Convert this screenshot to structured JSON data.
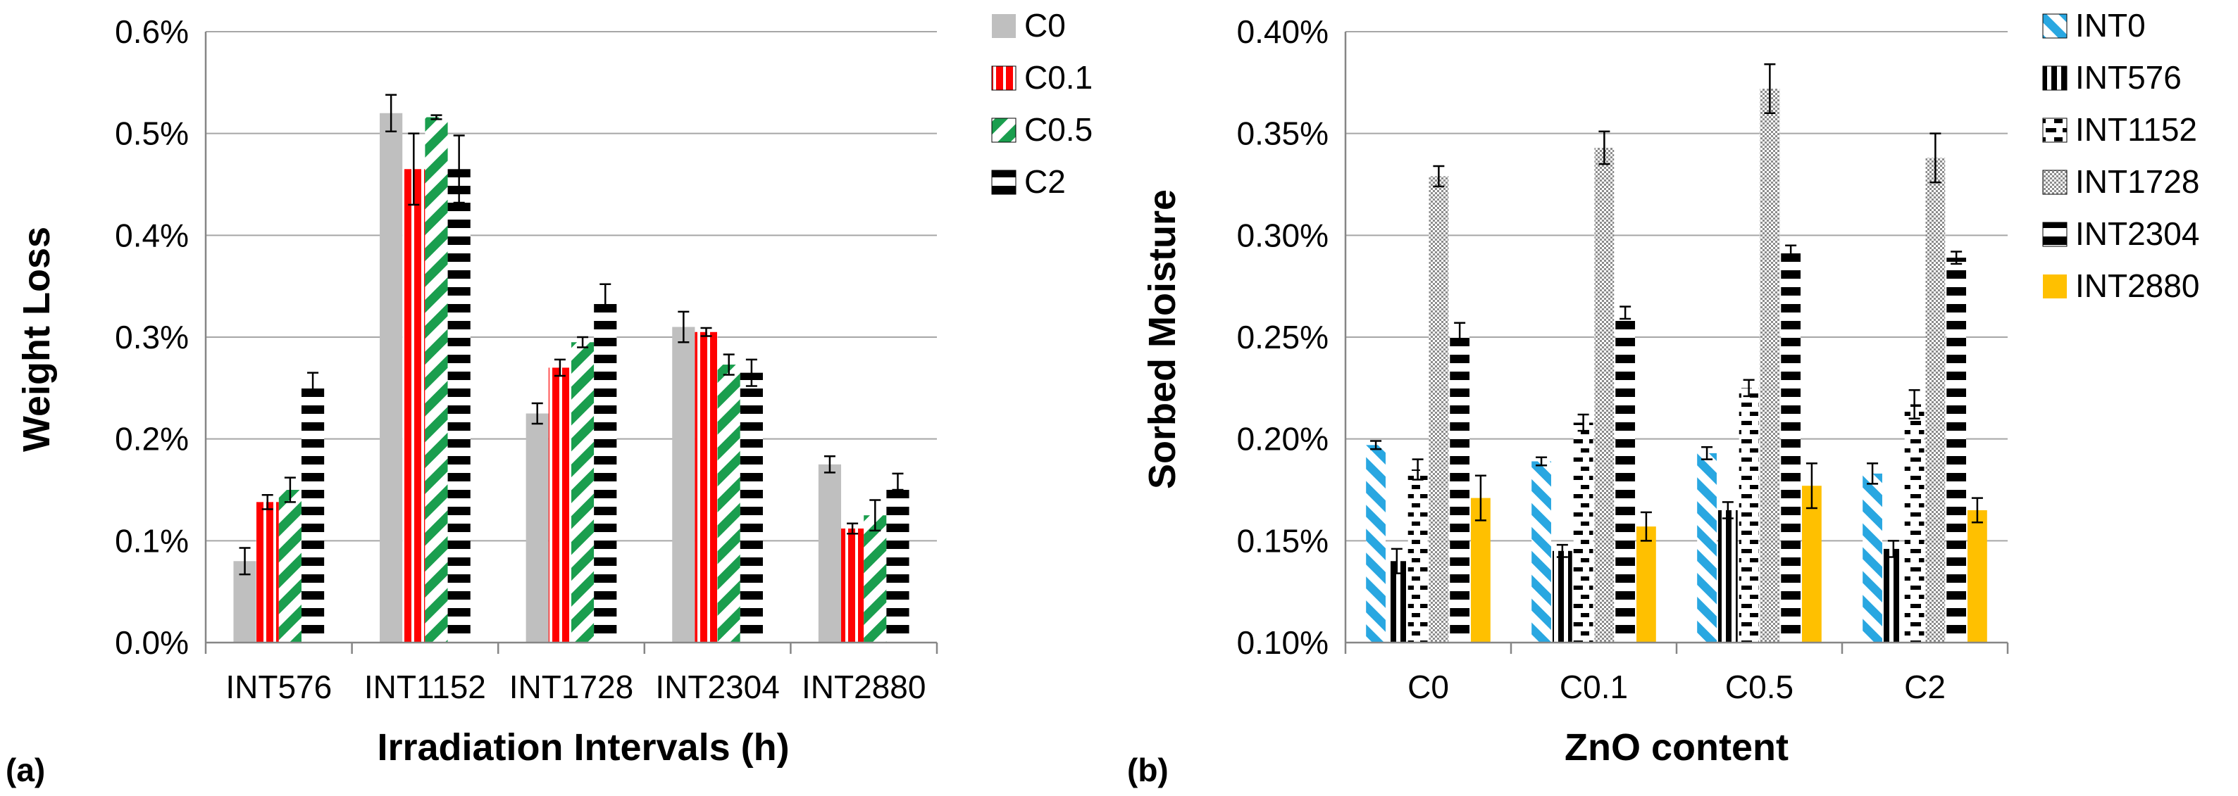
{
  "chart_data": [
    {
      "type": "bar",
      "panel_label": "(a)",
      "xlabel": "Irradiation Intervals (h)",
      "ylabel": "Weight Loss",
      "ylim": [
        0,
        0.006
      ],
      "ytick_values": [
        0,
        0.001,
        0.002,
        0.003,
        0.004,
        0.005,
        0.006
      ],
      "yticks": [
        "0.0%",
        "0.1%",
        "0.2%",
        "0.3%",
        "0.4%",
        "0.5%",
        "0.6%"
      ],
      "grid": true,
      "legend_position": "right",
      "categories": [
        "INT576",
        "INT1152",
        "INT1728",
        "INT2304",
        "INT2880"
      ],
      "series": [
        {
          "name": "C0",
          "values": [
            0.0008,
            0.0052,
            0.00225,
            0.0031,
            0.00175
          ],
          "errors": [
            0.00013,
            0.00018,
            0.0001,
            0.00015,
            8e-05
          ],
          "pattern": "solid-gray"
        },
        {
          "name": "C0.1",
          "values": [
            0.00138,
            0.00465,
            0.0027,
            0.00305,
            0.00112
          ],
          "errors": [
            7e-05,
            0.00035,
            8e-05,
            4e-05,
            5e-05
          ],
          "pattern": "red-vertical"
        },
        {
          "name": "C0.5",
          "values": [
            0.0015,
            0.00516,
            0.00295,
            0.00273,
            0.00125
          ],
          "errors": [
            0.00012,
            2e-05,
            5e-05,
            0.0001,
            0.00015
          ],
          "pattern": "green-diagonal"
        },
        {
          "name": "C2",
          "values": [
            0.00255,
            0.00465,
            0.0034,
            0.00265,
            0.00158
          ],
          "errors": [
            0.0001,
            0.00033,
            0.00012,
            0.00013,
            8e-05
          ],
          "pattern": "black-horizontal"
        }
      ]
    },
    {
      "type": "bar",
      "panel_label": "(b)",
      "xlabel": "ZnO content",
      "ylabel": "Sorbed Moisture",
      "ylim": [
        0.001,
        0.004
      ],
      "ytick_values": [
        0.001,
        0.0015,
        0.002,
        0.0025,
        0.003,
        0.0035,
        0.004
      ],
      "yticks": [
        "0.10%",
        "0.15%",
        "0.20%",
        "0.25%",
        "0.30%",
        "0.35%",
        "0.40%"
      ],
      "grid": true,
      "legend_position": "right",
      "categories": [
        "C0",
        "C0.1",
        "C0.5",
        "C2"
      ],
      "series": [
        {
          "name": "INT0",
          "values": [
            0.00197,
            0.00189,
            0.00193,
            0.00183
          ],
          "errors": [
            2e-05,
            2e-05,
            3e-05,
            5e-05
          ],
          "pattern": "blue-diagonal"
        },
        {
          "name": "INT576",
          "values": [
            0.0014,
            0.00145,
            0.00165,
            0.00146
          ],
          "errors": [
            6e-05,
            3e-05,
            4e-05,
            4e-05
          ],
          "pattern": "black-vertical"
        },
        {
          "name": "INT1152",
          "values": [
            0.00185,
            0.00208,
            0.00225,
            0.00217
          ],
          "errors": [
            5e-05,
            4e-05,
            4e-05,
            7e-05
          ],
          "pattern": "dashed-horizontal"
        },
        {
          "name": "INT1728",
          "values": [
            0.00329,
            0.00343,
            0.00372,
            0.00338
          ],
          "errors": [
            5e-05,
            8e-05,
            0.00012,
            0.00012
          ],
          "pattern": "gray-checker"
        },
        {
          "name": "INT2304",
          "values": [
            0.00253,
            0.00262,
            0.00292,
            0.00289
          ],
          "errors": [
            4e-05,
            3e-05,
            3e-05,
            3e-05
          ],
          "pattern": "black-horizontal"
        },
        {
          "name": "INT2880",
          "values": [
            0.00171,
            0.00157,
            0.00177,
            0.00165
          ],
          "errors": [
            0.00011,
            7e-05,
            0.00011,
            6e-05
          ],
          "pattern": "solid-gold"
        }
      ]
    }
  ]
}
